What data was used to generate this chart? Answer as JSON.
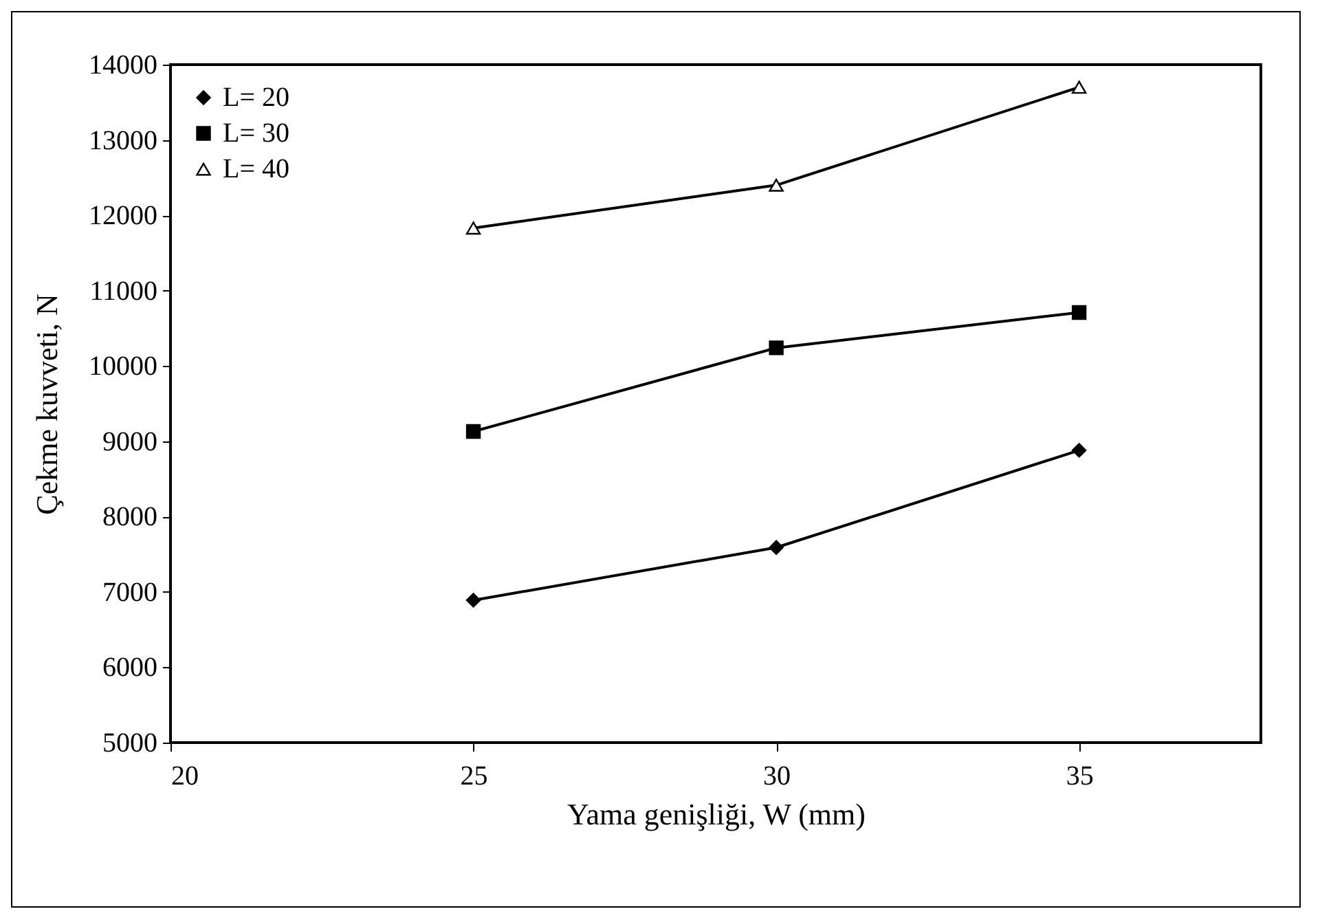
{
  "chart_data": {
    "type": "line",
    "xlabel": "Yama genişliği, W  (mm)",
    "ylabel": "Çekme kuvveti, N",
    "x": [
      25,
      30,
      35
    ],
    "series": [
      {
        "name": "L= 20",
        "color": "#000000",
        "marker": "diamond",
        "values": [
          6890,
          7590,
          8880
        ]
      },
      {
        "name": "L= 30",
        "color": "#000000",
        "marker": "square",
        "values": [
          9130,
          10240,
          10710
        ]
      },
      {
        "name": "L= 40",
        "color": "#000000",
        "marker": "triangle",
        "values": [
          11830,
          12400,
          13700
        ]
      }
    ],
    "xlim": [
      20,
      38
    ],
    "xticks": [
      20,
      25,
      30,
      35
    ],
    "ylim": [
      5000,
      14000
    ],
    "yticks": [
      5000,
      6000,
      7000,
      8000,
      9000,
      10000,
      11000,
      12000,
      13000,
      14000
    ],
    "grid": false,
    "legend": "top left",
    "line_style": "solid"
  }
}
